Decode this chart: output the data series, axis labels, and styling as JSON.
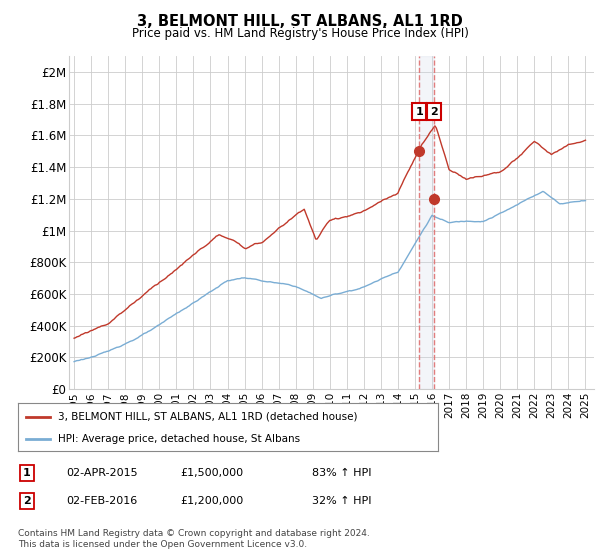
{
  "title": "3, BELMONT HILL, ST ALBANS, AL1 1RD",
  "subtitle": "Price paid vs. HM Land Registry's House Price Index (HPI)",
  "ylim": [
    0,
    2100000
  ],
  "xlim_left": 1994.7,
  "xlim_right": 2025.5,
  "yticks": [
    0,
    200000,
    400000,
    600000,
    800000,
    1000000,
    1200000,
    1400000,
    1600000,
    1800000,
    2000000
  ],
  "ytick_labels": [
    "£0",
    "£200K",
    "£400K",
    "£600K",
    "£800K",
    "£1M",
    "£1.2M",
    "£1.4M",
    "£1.6M",
    "£1.8M",
    "£2M"
  ],
  "xticks": [
    1995,
    1996,
    1997,
    1998,
    1999,
    2000,
    2001,
    2002,
    2003,
    2004,
    2005,
    2006,
    2007,
    2008,
    2009,
    2010,
    2011,
    2012,
    2013,
    2014,
    2015,
    2016,
    2017,
    2018,
    2019,
    2020,
    2021,
    2022,
    2023,
    2024,
    2025
  ],
  "hpi_color": "#7aadd4",
  "price_color": "#c0392b",
  "vline_color": "#e07070",
  "vspan_color": "#d0d8e8",
  "transaction1": {
    "year": 2015.25,
    "price": 1500000,
    "label": "1",
    "date": "02-APR-2015",
    "pct": "83% ↑ HPI"
  },
  "transaction2": {
    "year": 2016.1,
    "price": 1200000,
    "label": "2",
    "date": "02-FEB-2016",
    "pct": "32% ↑ HPI"
  },
  "legend_label1": "3, BELMONT HILL, ST ALBANS, AL1 1RD (detached house)",
  "legend_label2": "HPI: Average price, detached house, St Albans",
  "footer": "Contains HM Land Registry data © Crown copyright and database right 2024.\nThis data is licensed under the Open Government Licence v3.0.",
  "bg_color": "#ffffff",
  "grid_color": "#cccccc"
}
